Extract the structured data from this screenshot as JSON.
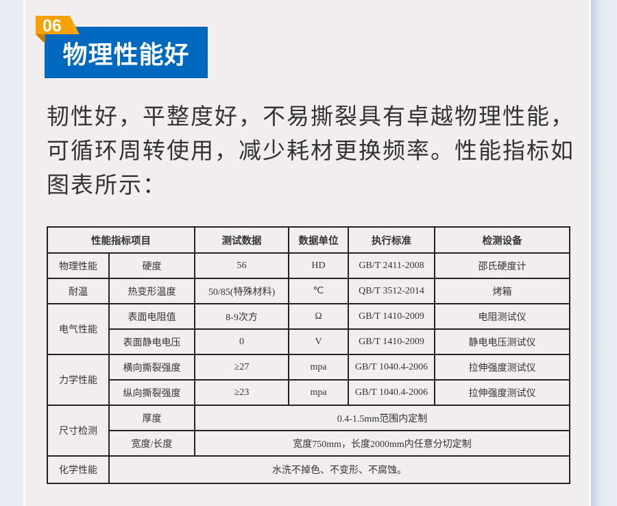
{
  "section": {
    "number": "06",
    "title": "物理性能好",
    "accent": "#0068be",
    "tab_color": "#f7a102"
  },
  "description": "韧性好，平整度好，不易撕裂具有卓越物理性能，可循环周转使用，减少耗材更换频率。性能指标如图表所示：",
  "table": {
    "headers": [
      "性能指标项目",
      "测试数据",
      "数据单位",
      "执行标准",
      "检测设备"
    ],
    "rows": [
      {
        "group": "物理性能",
        "item": "硬度",
        "value": "56",
        "unit": "HD",
        "standard": "GB/T 2411-2008",
        "device": "邵氏硬度计"
      },
      {
        "group": "耐温",
        "item": "热变形温度",
        "value": "50/85(特殊材料)",
        "unit": "℃",
        "standard": "QB/T 3512-2014",
        "device": "烤箱"
      },
      {
        "group": "电气性能",
        "item": "表面电阻值",
        "value": "8-9次方",
        "unit": "Ω",
        "standard": "GB/T 1410-2009",
        "device": "电阻测试仪"
      },
      {
        "item": "表面静电电压",
        "value": "0",
        "unit": "V",
        "standard": "GB/T 1410-2009",
        "device": "静电电压测试仪"
      },
      {
        "group": "力学性能",
        "item": "横向撕裂强度",
        "value": "≥27",
        "unit": "mpa",
        "standard": "GB/T 1040.4-2006",
        "device": "拉伸强度测试仪"
      },
      {
        "item": "纵向撕裂强度",
        "value": "≥23",
        "unit": "mpa",
        "standard": "GB/T 1040.4-2006",
        "device": "拉伸强度测试仪"
      },
      {
        "group": "尺寸检测",
        "item": "厚度",
        "merged": "0.4-1.5mm范围内定制"
      },
      {
        "item": "宽度/长度",
        "merged": "宽度750mm，长度2000mm内任意分切定制"
      },
      {
        "group": "化学性能",
        "merged": "水洗不掉色、不变形、不腐蚀。"
      }
    ]
  }
}
